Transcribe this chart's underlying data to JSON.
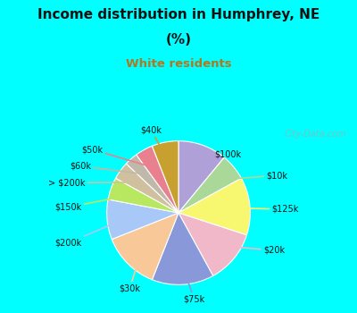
{
  "title_line1": "Income distribution in Humphrey, NE",
  "title_line2": "(%)",
  "subtitle": "White residents",
  "title_color": "#111111",
  "subtitle_color": "#b07820",
  "bg_cyan": "#00ffff",
  "bg_chart": "#d8ede0",
  "labels": [
    "$100k",
    "$10k",
    "$125k",
    "$20k",
    "$75k",
    "$30k",
    "$200k",
    "$150k",
    "> $200k",
    "$60k",
    "$50k",
    "$40k"
  ],
  "values": [
    11,
    6,
    13,
    12,
    14,
    13,
    9,
    5,
    4,
    3,
    4,
    6
  ],
  "colors": [
    "#b0a0d8",
    "#aad898",
    "#f8f870",
    "#f0b8c8",
    "#8898d8",
    "#f8c898",
    "#a8c8f8",
    "#b8e860",
    "#d0c0a0",
    "#c0b8a8",
    "#e88090",
    "#c8a030"
  ],
  "startangle": 90,
  "watermark": "City-Data.com"
}
